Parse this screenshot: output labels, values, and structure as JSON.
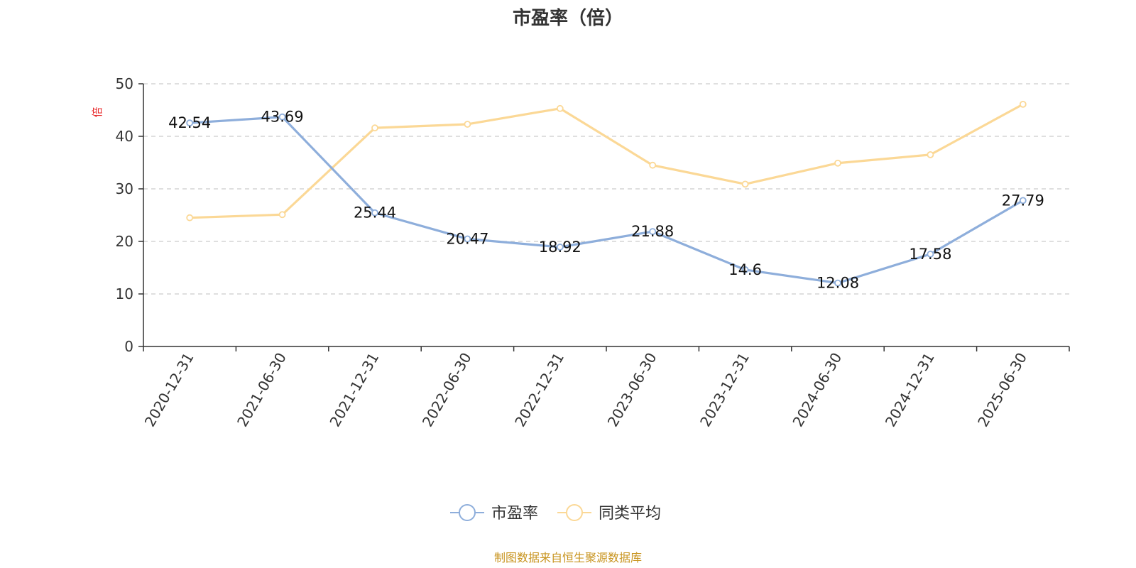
{
  "chart_data": {
    "type": "line",
    "title": "市盈率（倍）",
    "y_unit": "倍",
    "ylim": [
      0,
      50
    ],
    "yticks": [
      0,
      10,
      20,
      30,
      40,
      50
    ],
    "grid": true,
    "legend_position": "bottom-center",
    "categories": [
      "2020-12-31",
      "2021-06-30",
      "2021-12-31",
      "2022-06-30",
      "2022-12-31",
      "2023-06-30",
      "2023-12-31",
      "2024-06-30",
      "2024-12-31",
      "2025-06-30"
    ],
    "series": [
      {
        "name": "市盈率",
        "color": "#8eaedb",
        "values": [
          42.54,
          43.69,
          25.44,
          20.47,
          18.92,
          21.88,
          14.6,
          12.08,
          17.58,
          27.79
        ],
        "labels": [
          "42.54",
          "43.69",
          "25.44",
          "20.47",
          "18.92",
          "21.88",
          "14.6",
          "12.08",
          "17.58",
          "27.79"
        ]
      },
      {
        "name": "同类平均",
        "color": "#fbd896",
        "values": [
          24.5,
          25.1,
          41.6,
          42.3,
          45.3,
          34.5,
          30.9,
          34.9,
          36.5,
          46.1
        ]
      }
    ]
  },
  "source_note": "制图数据来自恒生聚源数据库",
  "colors": {
    "unit": "#e8292b",
    "source": "#c8941f",
    "axis": "#333333",
    "grid": "#cccccc"
  }
}
